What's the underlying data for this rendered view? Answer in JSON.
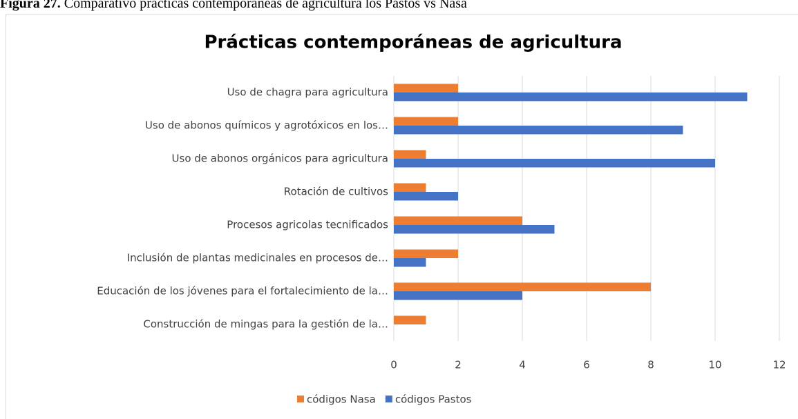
{
  "caption": {
    "label": "Figura 27.",
    "text": "Comparativo prácticas contemporáneas de agricultura los Pastos vs Nasa"
  },
  "chart_data": {
    "type": "hbar",
    "title": "Prácticas contemporáneas de agricultura",
    "categories": [
      "Uso de chagra para agricultura",
      "Uso de abonos químicos y agrotóxicos en los…",
      "Uso de abonos orgánicos para agricultura",
      "Rotación de cultivos",
      "Procesos agricolas tecnificados",
      "Inclusión de plantas medicinales en procesos de…",
      "Educación de los jóvenes para el fortalecimiento de la…",
      "Construcción de mingas para la gestión de la…"
    ],
    "series": [
      {
        "name": "códigos Nasa",
        "color": "#ed7d31",
        "values": [
          2,
          2,
          1,
          1,
          4,
          2,
          8,
          1
        ]
      },
      {
        "name": "códigos Pastos",
        "color": "#4472c4",
        "values": [
          11,
          9,
          10,
          2,
          5,
          1,
          4,
          0
        ]
      }
    ],
    "xlim": [
      0,
      12
    ],
    "xticks": [
      0,
      2,
      4,
      6,
      8,
      10,
      12
    ],
    "grid": true,
    "legend": "bottom"
  }
}
